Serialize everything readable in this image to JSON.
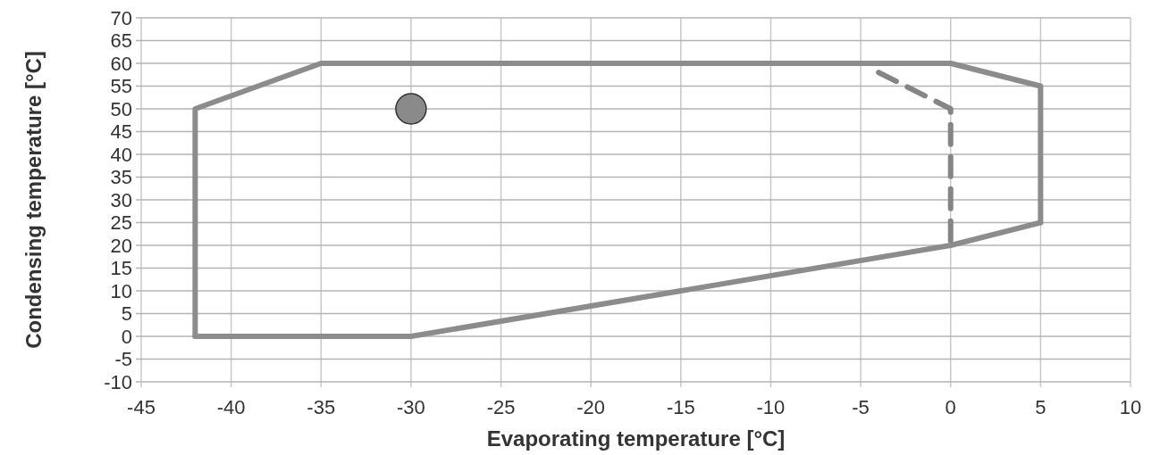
{
  "chart_data": {
    "type": "line",
    "xlabel": "Evaporating temperature [°C]",
    "ylabel": "Condensing temperature [°C]",
    "xlim": [
      -45,
      10
    ],
    "xticks": [
      -45,
      -40,
      -35,
      -30,
      -25,
      -20,
      -15,
      -10,
      -5,
      0,
      5,
      10
    ],
    "ylim": [
      -10,
      70
    ],
    "yticks": [
      -10,
      -5,
      0,
      5,
      10,
      15,
      20,
      25,
      30,
      35,
      40,
      45,
      50,
      55,
      60,
      65,
      70
    ],
    "grid": true,
    "marker": "none",
    "series": [
      {
        "type": "line",
        "color": "#8c8c8c",
        "line_style": "solid",
        "x": [
          -42,
          -42,
          -35,
          0,
          5,
          5
        ],
        "values": [
          0,
          50,
          60,
          60,
          55,
          25
        ]
      },
      {
        "type": "line",
        "color": "#8c8c8c",
        "line_style": "solid",
        "x": [
          -42,
          -30,
          0,
          5
        ],
        "values": [
          0,
          0,
          20,
          25
        ]
      },
      {
        "type": "line",
        "color": "#858585",
        "line_style": "dashed",
        "x": [
          -4,
          0,
          0
        ],
        "values": [
          58,
          50,
          20
        ]
      },
      {
        "type": "scatter",
        "color": "#8a8a8a",
        "marker": "circle",
        "x": [
          -30
        ],
        "values": [
          50
        ]
      }
    ]
  }
}
